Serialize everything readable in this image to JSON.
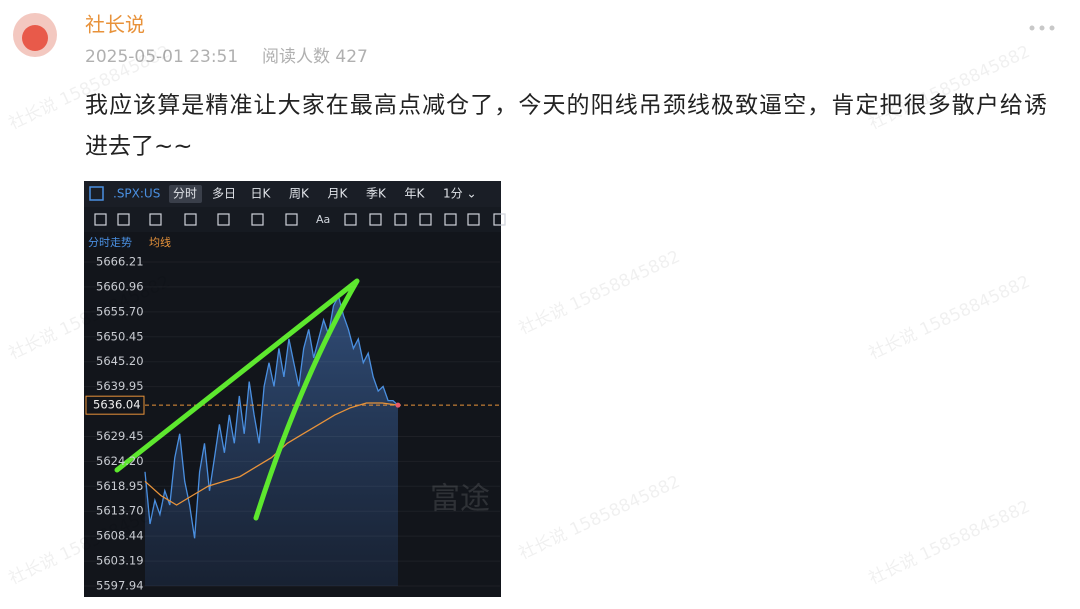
{
  "post": {
    "username": "社长说",
    "datetime": "2025-05-01 23:51",
    "read_count": "阅读人数 427",
    "text_lines": [
      "我应该算是精准让大家在最高点减仓了，今天的阳线吊颈线极致逼空，肯定把很多散户给诱",
      "进去了~~"
    ],
    "watermark": "社长说 15858845882"
  },
  "chart": {
    "type": "line",
    "symbol": ".SPX:US",
    "tabs": [
      "分时",
      "多日",
      "日K",
      "周K",
      "月K",
      "季K",
      "年K",
      "1分 ⌄"
    ],
    "tool_text": "Aa",
    "logo": "富途",
    "series": [
      {
        "name": "分时走势",
        "color": "#4a8fe0",
        "values": [
          5622,
          5611,
          5616,
          5613,
          5618,
          5615,
          5625,
          5630,
          5620,
          5615,
          5608,
          5622,
          5628,
          5618,
          5625,
          5632,
          5626,
          5634,
          5628,
          5638,
          5630,
          5641,
          5634,
          5628,
          5640,
          5645,
          5640,
          5648,
          5642,
          5650,
          5645,
          5640,
          5648,
          5652,
          5646,
          5650,
          5654,
          5651,
          5657,
          5659,
          5655,
          5652,
          5648,
          5650,
          5645,
          5647,
          5642,
          5639,
          5640,
          5637,
          5637,
          5636.04
        ]
      },
      {
        "name": "均线",
        "color": "#e8933a",
        "values": [
          5620,
          5617,
          5615,
          5617,
          5619,
          5620,
          5621,
          5623,
          5625,
          5628,
          5630,
          5632,
          5634,
          5635.5,
          5636.5,
          5636.5,
          5636.04
        ]
      }
    ],
    "last_price": 5636.04,
    "ylim": [
      5597.94,
      5666.21
    ],
    "yticks": [
      5666.21,
      5660.96,
      {
        "value": 5655.7,
        "label": "5655.70"
      },
      5650.45,
      {
        "value": 5645.2,
        "label": "5645.20"
      },
      5639.95,
      5629.45,
      {
        "value": 5624.2,
        "label": "5624.20"
      },
      5618.95,
      {
        "value": 5613.7,
        "label": "5613.70"
      },
      5608.44,
      5603.19,
      5597.94
    ]
  }
}
